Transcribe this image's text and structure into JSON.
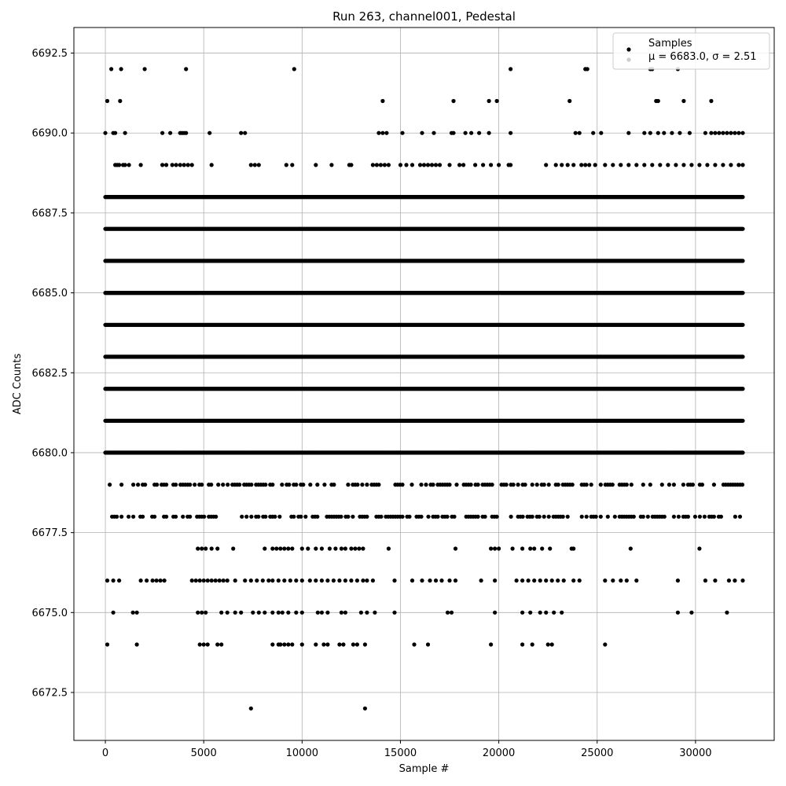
{
  "chart_data": {
    "type": "scatter",
    "title": "Run 263, channel001, Pedestal",
    "xlabel": "Sample #",
    "ylabel": "ADC Counts",
    "xlim": [
      -1600,
      34000
    ],
    "ylim": [
      6671.0,
      6693.3
    ],
    "xticks": [
      0,
      5000,
      10000,
      15000,
      20000,
      25000,
      30000
    ],
    "yticks": [
      6672.5,
      6675.0,
      6677.5,
      6680.0,
      6682.5,
      6685.0,
      6687.5,
      6690.0,
      6692.5
    ],
    "xtick_labels": [
      "0",
      "5000",
      "10000",
      "15000",
      "20000",
      "25000",
      "30000"
    ],
    "ytick_labels": [
      "6672.5",
      "6675.0",
      "6677.5",
      "6680.0",
      "6682.5",
      "6685.0",
      "6687.5",
      "6690.0",
      "6692.5"
    ],
    "grid": true,
    "legend_position": "top-right",
    "marker_color": "#000000",
    "series": [
      {
        "name": "Samples",
        "x_range": [
          0,
          32400
        ],
        "levels": [
          {
            "y": 6692,
            "x": [
              300,
              800,
              2000,
              4100,
              9600,
              20600,
              24400,
              24500,
              27700,
              27800,
              29100
            ]
          },
          {
            "y": 6691,
            "x": [
              100,
              750,
              14100,
              17700,
              19500,
              19900,
              23600,
              28000,
              28100,
              29400,
              30800
            ]
          },
          {
            "y": 6690,
            "x": [
              0,
              400,
              500,
              1000,
              2900,
              3300,
              3800,
              3900,
              4000,
              4100,
              5300,
              6900,
              7100,
              13900,
              14100,
              14300,
              15100,
              16100,
              16700,
              17600,
              17700,
              18300,
              18600,
              19000,
              19500,
              20600,
              23900,
              24100,
              24800,
              25200,
              26600,
              27400,
              27700,
              28100,
              28400,
              28800,
              29200,
              29700,
              30500,
              30800,
              31000,
              31200,
              31400,
              31600,
              31800,
              32000,
              32200,
              32400
            ]
          },
          {
            "y": 6689,
            "x": [
              500,
              600,
              700,
              900,
              1000,
              1200,
              1800,
              2900,
              3100,
              3400,
              3600,
              3800,
              4000,
              4200,
              4400,
              5400,
              7400,
              7600,
              7800,
              9200,
              9500,
              10700,
              11500,
              12400,
              12500,
              13600,
              13800,
              14000,
              14200,
              14400,
              15000,
              15300,
              15600,
              16000,
              16200,
              16400,
              16600,
              16800,
              17000,
              17500,
              18000,
              18200,
              18800,
              19200,
              19600,
              20000,
              20500,
              20600,
              22400,
              22900,
              23200,
              23500,
              23800,
              24200,
              24400,
              24600,
              24900,
              25400,
              25800,
              26200,
              26600,
              27000,
              27400,
              27800,
              28200,
              28600,
              29000,
              29400,
              29800,
              30200,
              30600,
              31000,
              31400,
              31800,
              32200,
              32400
            ]
          },
          {
            "y": 6688,
            "x_range": [
              0,
              32400
            ],
            "density": "dense"
          },
          {
            "y": 6687,
            "x_range": [
              0,
              32400
            ],
            "density": "dense"
          },
          {
            "y": 6686,
            "x_range": [
              0,
              32400
            ],
            "density": "dense"
          },
          {
            "y": 6685,
            "x_range": [
              0,
              32400
            ],
            "density": "dense"
          },
          {
            "y": 6684,
            "x_range": [
              0,
              32400
            ],
            "density": "dense"
          },
          {
            "y": 6683,
            "x_range": [
              0,
              32400
            ],
            "density": "dense"
          },
          {
            "y": 6682,
            "x_range": [
              0,
              32400
            ],
            "density": "dense"
          },
          {
            "y": 6681,
            "x_range": [
              0,
              32400
            ],
            "density": "dense"
          },
          {
            "y": 6680,
            "x_range": [
              0,
              32400
            ],
            "density": "dense"
          },
          {
            "y": 6679,
            "x_range": [
              0,
              32400
            ],
            "density": "medium"
          },
          {
            "y": 6678,
            "x_range": [
              0,
              32400
            ],
            "density": "medium"
          },
          {
            "y": 6677,
            "x": [
              4700,
              4900,
              5100,
              5400,
              5700,
              6500,
              8100,
              8500,
              8700,
              8900,
              9100,
              9300,
              9500,
              10000,
              10300,
              10700,
              11000,
              11400,
              11700,
              12000,
              12200,
              12500,
              12700,
              12900,
              13100,
              14400,
              17800,
              19600,
              19800,
              20000,
              20700,
              21200,
              21600,
              21800,
              22200,
              22600,
              23700,
              23800,
              26700,
              30200
            ]
          },
          {
            "y": 6676,
            "x": [
              100,
              400,
              700,
              1800,
              2100,
              2400,
              2600,
              2800,
              3000,
              4400,
              4600,
              4800,
              5000,
              5200,
              5400,
              5600,
              5800,
              6000,
              6200,
              6600,
              7100,
              7400,
              7700,
              8000,
              8300,
              8500,
              8800,
              9100,
              9400,
              9700,
              10000,
              10400,
              10700,
              11000,
              11300,
              11600,
              11900,
              12200,
              12500,
              12800,
              13100,
              13300,
              13600,
              14700,
              15600,
              16100,
              16500,
              16800,
              17100,
              17500,
              17800,
              19100,
              19800,
              20900,
              21200,
              21500,
              21800,
              22100,
              22400,
              22700,
              23000,
              23300,
              23800,
              24100,
              25400,
              25800,
              26200,
              26500,
              27000,
              29100,
              30500,
              31000,
              31700,
              32000,
              32400
            ]
          },
          {
            "y": 6675,
            "x": [
              400,
              1400,
              1600,
              4700,
              4900,
              5100,
              5900,
              6200,
              6600,
              6900,
              7500,
              7800,
              8100,
              8500,
              8800,
              9000,
              9300,
              9700,
              10000,
              10800,
              11000,
              11300,
              12000,
              12200,
              13000,
              13300,
              13700,
              14700,
              17400,
              17600,
              19800,
              21200,
              21600,
              22100,
              22400,
              22800,
              23200,
              29100,
              29800,
              31600
            ]
          },
          {
            "y": 6674,
            "x": [
              100,
              1600,
              4800,
              5000,
              5200,
              5700,
              5900,
              8500,
              8800,
              8900,
              9100,
              9300,
              9500,
              10000,
              10700,
              11100,
              11300,
              11900,
              12100,
              12600,
              12800,
              13200,
              15700,
              16400,
              19600,
              21200,
              21700,
              22500,
              22700,
              25400
            ]
          },
          {
            "y": 6672,
            "x": [
              7400,
              13200
            ]
          }
        ]
      }
    ],
    "legend_stats": "μ = 6683.0, σ = 2.51"
  }
}
